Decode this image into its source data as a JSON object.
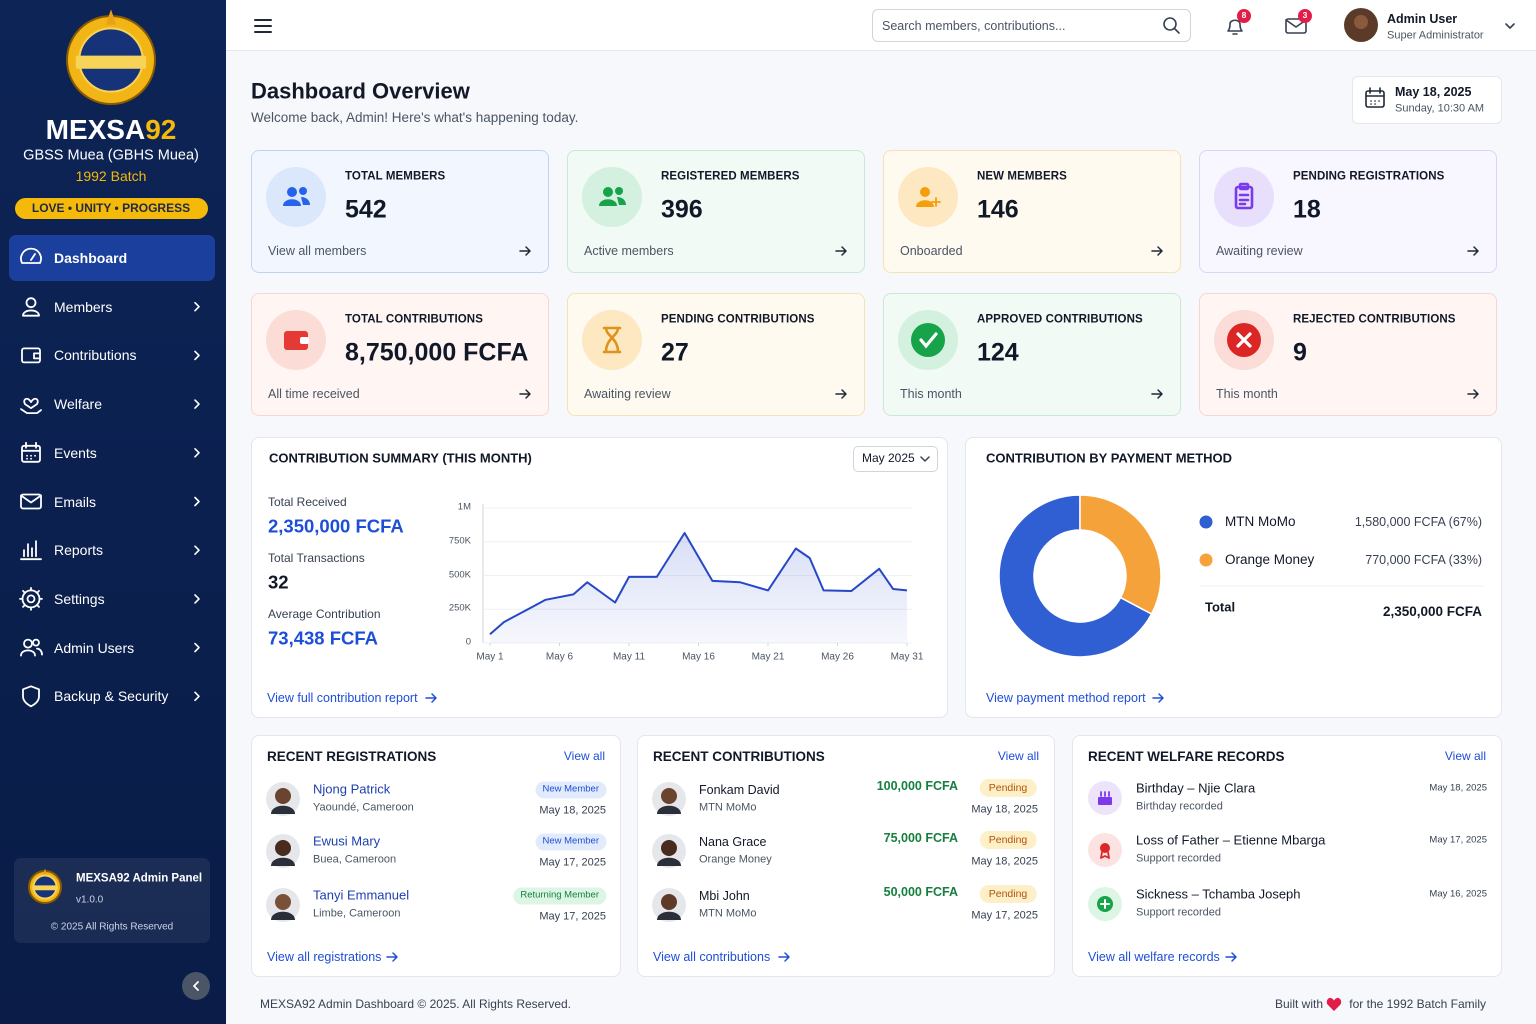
{
  "sidebar": {
    "brand": {
      "main": "MEXSA",
      "accent": "92"
    },
    "school": "GBSS Muea (GBHS Muea)",
    "batch": "1992 Batch",
    "motto": "LOVE • UNITY • PROGRESS",
    "nav": [
      "Dashboard",
      "Members",
      "Contributions",
      "Welfare",
      "Events",
      "Emails",
      "Reports",
      "Settings",
      "Admin Users",
      "Backup & Security"
    ],
    "footer": {
      "title": "MEXSA92 Admin Panel",
      "version": "v1.0.0",
      "rights": "© 2025 All Rights Reserved"
    }
  },
  "topbar": {
    "search_placeholder": "Search members, contributions...",
    "notifications": 8,
    "messages": 3,
    "user": {
      "name": "Admin User",
      "role": "Super Administrator"
    }
  },
  "header": {
    "title": "Dashboard Overview",
    "subtitle": "Welcome back, Admin! Here's what's happening today.",
    "date": "May 18, 2025",
    "time": "Sunday, 10:30 AM"
  },
  "stats": [
    {
      "label": "TOTAL MEMBERS",
      "value": 542,
      "note": "View all members"
    },
    {
      "label": "REGISTERED MEMBERS",
      "value": 396,
      "note": "Active members"
    },
    {
      "label": "NEW MEMBERS",
      "value": 146,
      "note": "Onboarded"
    },
    {
      "label": "PENDING REGISTRATIONS",
      "value": 18,
      "note": "Awaiting review"
    },
    {
      "label": "TOTAL CONTRIBUTIONS",
      "value": "8,750,000 FCFA",
      "note": "All time received"
    },
    {
      "label": "PENDING CONTRIBUTIONS",
      "value": 27,
      "note": "Awaiting review"
    },
    {
      "label": "APPROVED CONTRIBUTIONS",
      "value": 124,
      "note": "This month"
    },
    {
      "label": "REJECTED CONTRIBUTIONS",
      "value": 9,
      "note": "This month"
    }
  ],
  "summary": {
    "select": "May 2025",
    "stats": [
      {
        "label": "Total Received",
        "value": "2,350,000 FCFA"
      },
      {
        "label": "Total Transactions",
        "value": 32
      },
      {
        "label": "Average Contribution",
        "value": "73,438 FCFA"
      }
    ],
    "link": "View full contribution report"
  },
  "payment": {
    "link": "View payment method report"
  },
  "chart_data": [
    {
      "type": "line",
      "title": "CONTRIBUTION SUMMARY (THIS MONTH)",
      "x": [
        1,
        2,
        4,
        5,
        7,
        8,
        10,
        11,
        13,
        15,
        17,
        19,
        21,
        23,
        24,
        25,
        27,
        29,
        30,
        31
      ],
      "values": [
        65000,
        155000,
        265000,
        320000,
        360000,
        450000,
        300000,
        490000,
        490000,
        815000,
        460000,
        450000,
        390000,
        700000,
        630000,
        390000,
        385000,
        550000,
        400000,
        390000
      ],
      "color": "#2747c8",
      "xlim": [
        1,
        31
      ],
      "xticks": [
        {
          "value": 1,
          "label": "May 1"
        },
        {
          "value": 6,
          "label": "May 6"
        },
        {
          "value": 11,
          "label": "May 11"
        },
        {
          "value": 16,
          "label": "May 16"
        },
        {
          "value": 21,
          "label": "May 21"
        },
        {
          "value": 26,
          "label": "May 26"
        },
        {
          "value": 31,
          "label": "May 31"
        }
      ],
      "ylim": [
        0,
        1000000
      ],
      "yticks": [
        0,
        {
          "value": 250000,
          "label": "250K"
        },
        {
          "value": 500000,
          "label": "500K"
        },
        {
          "value": 750000,
          "label": "750K"
        },
        {
          "value": 1000000,
          "label": "1M"
        }
      ]
    },
    {
      "type": "pie",
      "title": "CONTRIBUTION BY PAYMENT METHOD",
      "categories": [
        "MTN MoMo",
        "Orange Money"
      ],
      "values": [
        1580000,
        770000
      ],
      "value_labels": [
        "1,580,000 FCFA (67%)",
        "770,000 FCFA (33%)"
      ],
      "colors": [
        "#2f5fd3",
        "#f6a23a"
      ],
      "donut": true,
      "total_label": "Total",
      "total_value": "2,350,000 FCFA"
    }
  ],
  "registrations": {
    "title": "RECENT REGISTRATIONS",
    "view_all": "View all",
    "items": [
      {
        "name": "Njong Patrick",
        "location": "Yaoundé, Cameroon",
        "badge": "New Member",
        "date": "May 18, 2025"
      },
      {
        "name": "Ewusi Mary",
        "location": "Buea, Cameroon",
        "badge": "New Member",
        "date": "May 17, 2025"
      },
      {
        "name": "Tanyi Emmanuel",
        "location": "Limbe, Cameroon",
        "badge": "Returning Member",
        "date": "May 17, 2025"
      }
    ],
    "link": "View all registrations"
  },
  "contributions": {
    "title": "RECENT CONTRIBUTIONS",
    "view_all": "View all",
    "items": [
      {
        "name": "Fonkam David",
        "method": "MTN MoMo",
        "amount": "100,000 FCFA",
        "status": "Pending",
        "date": "May 18, 2025"
      },
      {
        "name": "Nana Grace",
        "method": "Orange Money",
        "amount": "75,000 FCFA",
        "status": "Pending",
        "date": "May 18, 2025"
      },
      {
        "name": "Mbi John",
        "method": "MTN MoMo",
        "amount": "50,000 FCFA",
        "status": "Pending",
        "date": "May 17, 2025"
      }
    ],
    "link": "View all contributions"
  },
  "welfare": {
    "title": "RECENT WELFARE RECORDS",
    "view_all": "View all",
    "items": [
      {
        "title": "Birthday – Njie Clara",
        "note": "Birthday recorded",
        "date": "May 18, 2025"
      },
      {
        "title": "Loss of Father – Etienne Mbarga",
        "note": "Support recorded",
        "date": "May 17, 2025"
      },
      {
        "title": "Sickness – Tchamba Joseph",
        "note": "Support recorded",
        "date": "May 16, 2025"
      }
    ],
    "link": "View all welfare records"
  },
  "footer": {
    "left": "MEXSA92 Admin Dashboard © 2025. All Rights Reserved.",
    "right_a": "Built with",
    "right_b": "for the 1992 Batch Family"
  }
}
